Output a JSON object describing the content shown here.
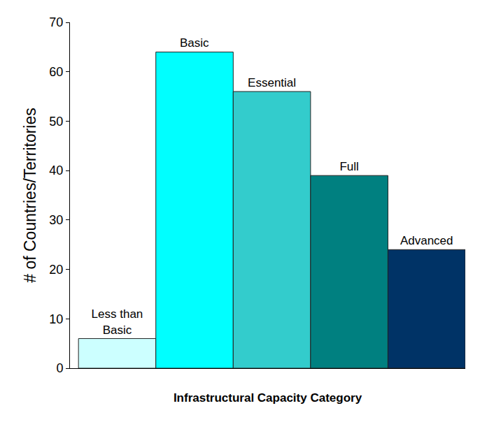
{
  "chart_data": {
    "type": "bar",
    "x_label": "Infrastructural Capacity Category",
    "y_label": "# of Countries/Territories",
    "categories": [
      "Less than Basic",
      "Basic",
      "Essential",
      "Full",
      "Advanced"
    ],
    "values": [
      6,
      64,
      56,
      39,
      24
    ],
    "colors": [
      "#ccffff",
      "#00ffff",
      "#33cccc",
      "#008080",
      "#003366"
    ],
    "ylim": [
      0,
      70
    ],
    "yticks": [
      0,
      10,
      20,
      30,
      40,
      50,
      60,
      70
    ],
    "grid": false,
    "data_labels": false,
    "tick_labels": "y"
  }
}
